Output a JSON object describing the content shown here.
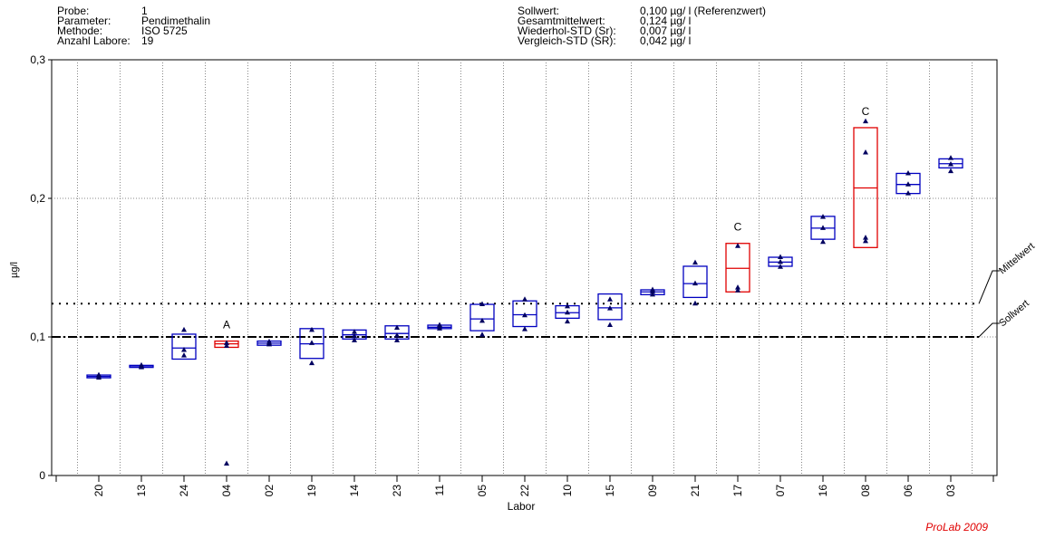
{
  "info_left": [
    {
      "key": "Probe:",
      "value": "1"
    },
    {
      "key": "Parameter:",
      "value": "Pendimethalin"
    },
    {
      "key": "Methode:",
      "value": "ISO 5725"
    },
    {
      "key": "Anzahl Labore:",
      "value": "19"
    }
  ],
  "info_right": [
    {
      "key": "Sollwert:",
      "value": "0,100 µg/ l (Referenzwert)"
    },
    {
      "key": "Gesamtmittelwert:",
      "value": "0,124 µg/ l"
    },
    {
      "key": "Wiederhol-STD (Sr):",
      "value": "0,007 µg/ l"
    },
    {
      "key": "Vergleich-STD (SR):",
      "value": "0,042 µg/ l"
    }
  ],
  "footer": "ProLab 2009",
  "chart_data": {
    "type": "box",
    "xlabel": "Labor",
    "ylabel": "µg/l",
    "ylim": [
      0,
      0.3
    ],
    "yticks": [
      0,
      0.1,
      0.2,
      0.3
    ],
    "ytick_labels": [
      "0",
      "0,1",
      "0,2",
      "0,3"
    ],
    "grid": true,
    "reference_lines": [
      {
        "label": "Mittelwert",
        "value": 0.124,
        "style": "dotted"
      },
      {
        "label": "Sollwert",
        "value": 0.1,
        "style": "dash-dot"
      }
    ],
    "colors": {
      "normal": "#0000c0",
      "flagged": "#e00000",
      "marker": "#000060"
    },
    "labs": [
      {
        "id": "20",
        "box": [
          0.0705,
          0.0715,
          0.0725
        ],
        "points": [
          0.0705,
          0.0715,
          0.0725
        ],
        "flag": "",
        "outlier": false
      },
      {
        "id": "13",
        "box": [
          0.078,
          0.0785,
          0.0795
        ],
        "points": [
          0.078,
          0.0785,
          0.0795
        ],
        "flag": "",
        "outlier": false
      },
      {
        "id": "24",
        "box": [
          0.084,
          0.092,
          0.102
        ],
        "points": [
          0.0865,
          0.0905,
          0.105
        ],
        "flag": "",
        "outlier": false
      },
      {
        "id": "04",
        "box": [
          0.0925,
          0.095,
          0.097
        ],
        "points": [
          0.0935,
          0.0955,
          0.0085
        ],
        "flag": "A",
        "outlier": true
      },
      {
        "id": "02",
        "box": [
          0.094,
          0.0955,
          0.097
        ],
        "points": [
          0.0945,
          0.0955,
          0.0965
        ],
        "flag": "",
        "outlier": false
      },
      {
        "id": "19",
        "box": [
          0.0845,
          0.095,
          0.106
        ],
        "points": [
          0.081,
          0.0955,
          0.105
        ],
        "flag": "",
        "outlier": false
      },
      {
        "id": "14",
        "box": [
          0.0985,
          0.1015,
          0.105
        ],
        "points": [
          0.0975,
          0.1005,
          0.1035
        ],
        "flag": "",
        "outlier": false
      },
      {
        "id": "23",
        "box": [
          0.0985,
          0.1025,
          0.108
        ],
        "points": [
          0.0975,
          0.101,
          0.1065
        ],
        "flag": "",
        "outlier": false
      },
      {
        "id": "11",
        "box": [
          0.106,
          0.107,
          0.1085
        ],
        "points": [
          0.106,
          0.1075,
          0.1085
        ],
        "flag": "",
        "outlier": false
      },
      {
        "id": "05",
        "box": [
          0.1045,
          0.113,
          0.1235
        ],
        "points": [
          0.1015,
          0.1115,
          0.1235
        ],
        "flag": "",
        "outlier": false
      },
      {
        "id": "22",
        "box": [
          0.1075,
          0.116,
          0.126
        ],
        "points": [
          0.1055,
          0.1155,
          0.127
        ],
        "flag": "",
        "outlier": false
      },
      {
        "id": "10",
        "box": [
          0.1135,
          0.1175,
          0.1225
        ],
        "points": [
          0.111,
          0.1175,
          0.122
        ],
        "flag": "",
        "outlier": false
      },
      {
        "id": "15",
        "box": [
          0.1125,
          0.121,
          0.131
        ],
        "points": [
          0.1085,
          0.1205,
          0.127
        ],
        "flag": "",
        "outlier": false
      },
      {
        "id": "09",
        "box": [
          0.1305,
          0.1325,
          0.134
        ],
        "points": [
          0.1305,
          0.1325,
          0.134
        ],
        "flag": "",
        "outlier": false
      },
      {
        "id": "21",
        "box": [
          0.1285,
          0.1385,
          0.151
        ],
        "points": [
          0.124,
          0.1385,
          0.1535
        ],
        "flag": "",
        "outlier": false
      },
      {
        "id": "17",
        "box": [
          0.1325,
          0.1495,
          0.1675
        ],
        "points": [
          0.1335,
          0.1355,
          0.1655
        ],
        "flag": "C",
        "outlier": false
      },
      {
        "id": "07",
        "box": [
          0.151,
          0.154,
          0.1575
        ],
        "points": [
          0.1505,
          0.154,
          0.1575
        ],
        "flag": "",
        "outlier": false
      },
      {
        "id": "16",
        "box": [
          0.1705,
          0.1785,
          0.187
        ],
        "points": [
          0.1685,
          0.1785,
          0.1865
        ],
        "flag": "",
        "outlier": false
      },
      {
        "id": "08",
        "box": [
          0.1645,
          0.2075,
          0.251
        ],
        "points": [
          0.169,
          0.1715,
          0.233,
          0.2555
        ],
        "flag": "C",
        "outlier": false
      },
      {
        "id": "06",
        "box": [
          0.2035,
          0.21,
          0.218
        ],
        "points": [
          0.2035,
          0.21,
          0.218
        ],
        "flag": "",
        "outlier": false
      },
      {
        "id": "03",
        "box": [
          0.222,
          0.225,
          0.2285
        ],
        "points": [
          0.2195,
          0.2245,
          0.229
        ],
        "flag": "",
        "outlier": false
      }
    ]
  }
}
